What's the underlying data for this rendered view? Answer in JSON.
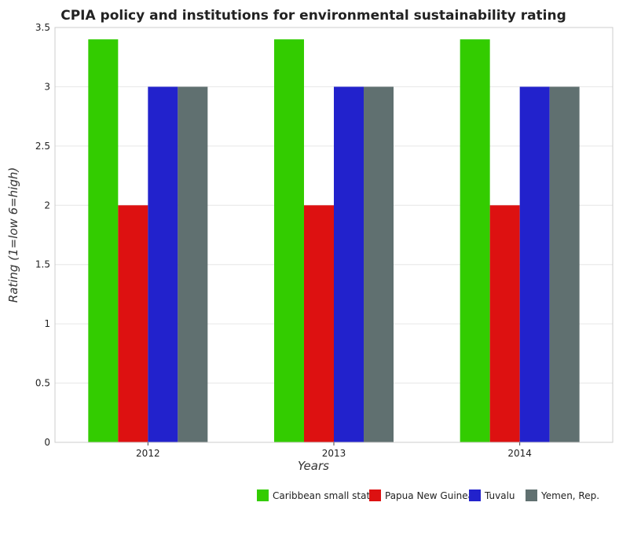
{
  "chart_data": {
    "type": "bar",
    "title": "CPIA policy and institutions for environmental sustainability rating",
    "xlabel": "Years",
    "ylabel": "Rating (1=low 6=high)",
    "categories": [
      "2012",
      "2013",
      "2014"
    ],
    "series": [
      {
        "name": "Caribbean small states",
        "color": "#33cc00",
        "values": [
          3.4,
          3.4,
          3.4
        ]
      },
      {
        "name": "Papua New Guinea",
        "color": "#dd1111",
        "values": [
          2.0,
          2.0,
          2.0
        ]
      },
      {
        "name": "Tuvalu",
        "color": "#2222cc",
        "values": [
          3.0,
          3.0,
          3.0
        ]
      },
      {
        "name": "Yemen, Rep.",
        "color": "#607070",
        "values": [
          3.0,
          3.0,
          3.0
        ]
      }
    ],
    "ylim": [
      0,
      3.5
    ],
    "yticks": [
      "0",
      "0.5",
      "1",
      "1.5",
      "2",
      "2.5",
      "3",
      "3.5"
    ],
    "grid": true,
    "legend_position": "bottom-right"
  }
}
